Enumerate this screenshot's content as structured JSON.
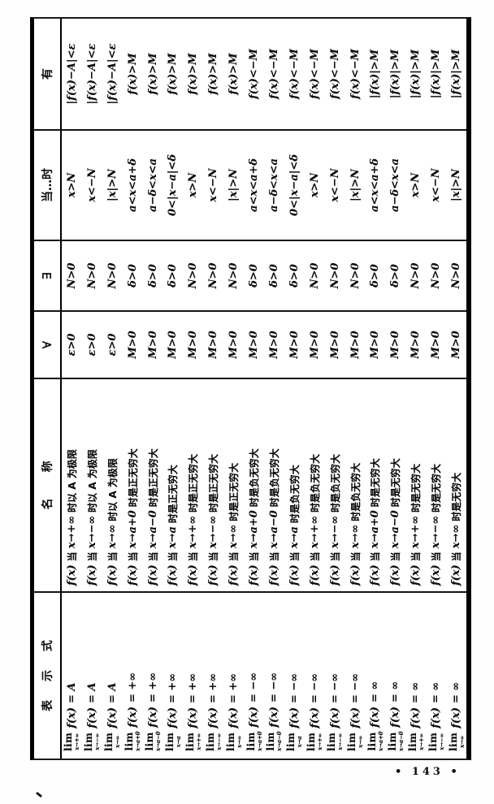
{
  "page": {
    "page_number": "• 143 •"
  },
  "table": {
    "labels": {
      "lim": "lim",
      "fx": "f(x)",
      "dang": "当"
    },
    "headers": {
      "expression": "表 示 式",
      "name": "名　称",
      "forall": "∀",
      "exists": "∃",
      "when": "当…时",
      "then": "有"
    },
    "rows": [
      {
        "arrow": "x→+∞",
        "eq": "= A",
        "name_suffix": "时以 A 为极限",
        "forall": "ε>0",
        "exists": "N>0",
        "when": "x>N",
        "then": "|f(x)−A|<ε"
      },
      {
        "arrow": "x→−∞",
        "eq": "= A",
        "name_suffix": "时以 A 为极限",
        "forall": "ε>0",
        "exists": "N>0",
        "when": "x<−N",
        "then": "|f(x)−A|<ε"
      },
      {
        "arrow": "x→∞",
        "eq": "= A",
        "name_suffix": "时以 A 为极限",
        "forall": "ε>0",
        "exists": "N>0",
        "when": "|x|>N",
        "then": "|f(x)−A|<ε"
      },
      {
        "arrow": "x→a+0",
        "eq": "= +∞",
        "name_suffix": "时是正无穷大",
        "forall": "M>0",
        "exists": "δ>0",
        "when": "a<x<a+δ",
        "then": "f(x)>M"
      },
      {
        "arrow": "x→a−0",
        "eq": "= +∞",
        "name_suffix": "时是正无穷大",
        "forall": "M>0",
        "exists": "δ>0",
        "when": "a−δ<x<a",
        "then": "f(x)>M"
      },
      {
        "arrow": "x→a",
        "eq": "= +∞",
        "name_suffix": "时是正无穷大",
        "forall": "M>0",
        "exists": "δ>0",
        "when": "0<|x−a|<δ",
        "then": "f(x)>M"
      },
      {
        "arrow": "x→+∞",
        "eq": "= +∞",
        "name_suffix": "时是正无穷大",
        "forall": "M>0",
        "exists": "N>0",
        "when": "x>N",
        "then": "f(x)>M"
      },
      {
        "arrow": "x→−∞",
        "eq": "= +∞",
        "name_suffix": "时是正无穷大",
        "forall": "M>0",
        "exists": "N>0",
        "when": "x<−N",
        "then": "f(x)>M"
      },
      {
        "arrow": "x→∞",
        "eq": "= +∞",
        "name_suffix": "时是正无穷大",
        "forall": "M>0",
        "exists": "N>0",
        "when": "|x|>N",
        "then": "f(x)>M"
      },
      {
        "arrow": "x→a+0",
        "eq": "= −∞",
        "name_suffix": "时是负无穷大",
        "forall": "M>0",
        "exists": "δ>0",
        "when": "a<x<a+δ",
        "then": "f(x)<−M"
      },
      {
        "arrow": "x→a−0",
        "eq": "= −∞",
        "name_suffix": "时是负无穷大",
        "forall": "M>0",
        "exists": "δ>0",
        "when": "a−δ<x<a",
        "then": "f(x)<−M"
      },
      {
        "arrow": "x→a",
        "eq": "= −∞",
        "name_suffix": "时是负无穷大",
        "forall": "M>0",
        "exists": "δ>0",
        "when": "0<|x−a|<δ",
        "then": "f(x)<−M"
      },
      {
        "arrow": "x→+∞",
        "eq": "= −∞",
        "name_suffix": "时是负无穷大",
        "forall": "M>0",
        "exists": "N>0",
        "when": "x>N",
        "then": "f(x)<−M"
      },
      {
        "arrow": "x→−∞",
        "eq": "= −∞",
        "name_suffix": "时是负无穷大",
        "forall": "M>0",
        "exists": "N>0",
        "when": "x<−N",
        "then": "f(x)<−M"
      },
      {
        "arrow": "x→∞",
        "eq": "= −∞",
        "name_suffix": "时是负无穷大",
        "forall": "M>0",
        "exists": "N>0",
        "when": "|x|>N",
        "then": "f(x)<−M"
      },
      {
        "arrow": "x→a+0",
        "eq": "= ∞",
        "name_suffix": "时是无穷大",
        "forall": "M>0",
        "exists": "δ>0",
        "when": "a<x<a+δ",
        "then": "|f(x)|>M"
      },
      {
        "arrow": "x→a−0",
        "eq": "= ∞",
        "name_suffix": "时是无穷大",
        "forall": "M>0",
        "exists": "δ>0",
        "when": "a−δ<x<a",
        "then": "|f(x)|>M"
      },
      {
        "arrow": "x→+∞",
        "eq": "= ∞",
        "name_suffix": "时是无穷大",
        "forall": "M>0",
        "exists": "N>0",
        "when": "x>N",
        "then": "|f(x)|>M"
      },
      {
        "arrow": "x→−∞",
        "eq": "= ∞",
        "name_suffix": "时是无穷大",
        "forall": "M>0",
        "exists": "N>0",
        "when": "x<−N",
        "then": "|f(x)|>M"
      },
      {
        "arrow": "x→∞",
        "eq": "= ∞",
        "name_suffix": "时是无穷大",
        "forall": "M>0",
        "exists": "N>0",
        "when": "|x|>N",
        "then": "|f(x)|>M"
      }
    ]
  }
}
